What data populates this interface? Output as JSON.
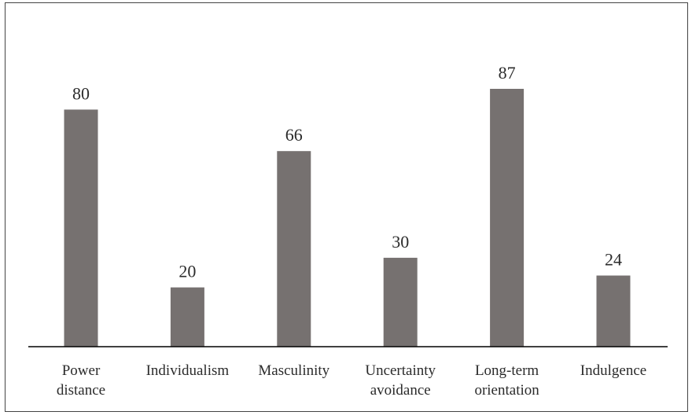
{
  "chart_data": {
    "type": "bar",
    "categories": [
      [
        "Power",
        "distance"
      ],
      [
        "Individualism"
      ],
      [
        "Masculinity"
      ],
      [
        "Uncertainty",
        "avoidance"
      ],
      [
        "Long-term",
        "orientation"
      ],
      [
        "Indulgence"
      ]
    ],
    "values": [
      80,
      20,
      66,
      30,
      87,
      24
    ],
    "data_labels": [
      "80",
      "20",
      "66",
      "30",
      "87",
      "24"
    ],
    "title": "",
    "xlabel": "",
    "ylabel": "",
    "ylim": [
      0,
      100
    ],
    "grid": false,
    "legend": "none",
    "bar_color": "#767170",
    "axis_color": "#000000"
  }
}
